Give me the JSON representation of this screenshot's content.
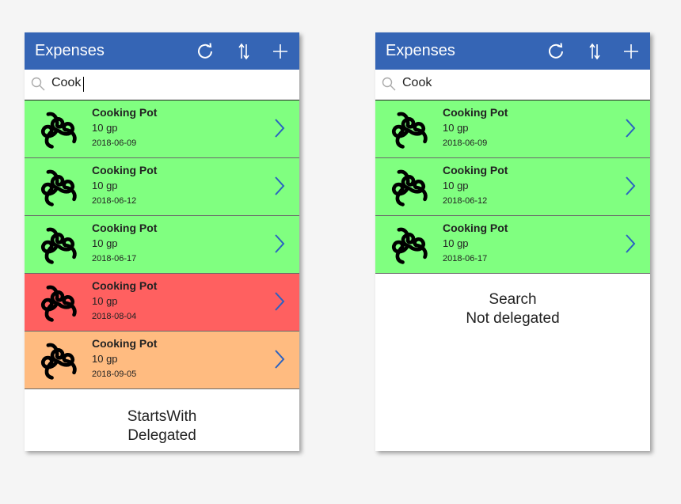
{
  "left": {
    "title": "Expenses",
    "search_value": "Cook",
    "items": [
      {
        "name": "Cooking Pot",
        "price": "10 gp",
        "date": "2018-06-09",
        "color": "#80ff80"
      },
      {
        "name": "Cooking Pot",
        "price": "10 gp",
        "date": "2018-06-12",
        "color": "#80ff80"
      },
      {
        "name": "Cooking Pot",
        "price": "10 gp",
        "date": "2018-06-17",
        "color": "#80ff80"
      },
      {
        "name": "Cooking Pot",
        "price": "10 gp",
        "date": "2018-08-04",
        "color": "#ff6060"
      },
      {
        "name": "Cooking Pot",
        "price": "10 gp",
        "date": "2018-09-05",
        "color": "#ffbb80"
      }
    ],
    "caption": "StartsWith\nDelegated"
  },
  "right": {
    "title": "Expenses",
    "search_value": "Cook",
    "items": [
      {
        "name": "Cooking Pot",
        "price": "10 gp",
        "date": "2018-06-09",
        "color": "#80ff80"
      },
      {
        "name": "Cooking Pot",
        "price": "10 gp",
        "date": "2018-06-12",
        "color": "#80ff80"
      },
      {
        "name": "Cooking Pot",
        "price": "10 gp",
        "date": "2018-06-17",
        "color": "#80ff80"
      }
    ],
    "caption": "Search\nNot delegated"
  },
  "icons": {
    "refresh": "refresh-icon",
    "sort": "sort-icon",
    "add": "add-icon",
    "search": "search-icon",
    "item": "triskele-icon",
    "open": "chevron-right-icon"
  },
  "colors": {
    "header": "#3565b5",
    "green": "#80ff80",
    "red": "#ff6060",
    "orange": "#ffbb80"
  }
}
